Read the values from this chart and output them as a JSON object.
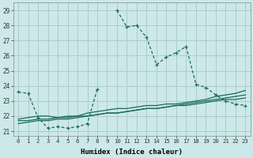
{
  "title": "",
  "xlabel": "Humidex (Indice chaleur)",
  "ylabel": "",
  "background_color": "#cce8e8",
  "grid_color": "#aacccc",
  "line_color": "#1a6b5a",
  "xlim": [
    -0.5,
    23.5
  ],
  "ylim": [
    20.7,
    29.5
  ],
  "yticks": [
    21,
    22,
    23,
    24,
    25,
    26,
    27,
    28,
    29
  ],
  "xticks": [
    0,
    1,
    2,
    3,
    4,
    5,
    6,
    7,
    8,
    9,
    10,
    11,
    12,
    13,
    14,
    15,
    16,
    17,
    18,
    19,
    20,
    21,
    22,
    23
  ],
  "line1_x": [
    0,
    1,
    2,
    3,
    4,
    5,
    6,
    7,
    8,
    9,
    10,
    11,
    12,
    13,
    14,
    15,
    16,
    17,
    18,
    19,
    20,
    21,
    22,
    23
  ],
  "line1_y": [
    23.6,
    23.5,
    21.9,
    21.2,
    21.3,
    21.2,
    21.3,
    21.5,
    23.8,
    null,
    29.0,
    27.9,
    28.0,
    27.2,
    25.4,
    25.9,
    26.2,
    26.6,
    24.1,
    23.9,
    23.4,
    23.0,
    22.8,
    22.7
  ],
  "line2_x": [
    0,
    1,
    2,
    3,
    4,
    5,
    6,
    7,
    8,
    9,
    10,
    11,
    12,
    13,
    14,
    15,
    16,
    17,
    18,
    19,
    20,
    21,
    22,
    23
  ],
  "line2_y": [
    21.8,
    21.9,
    22.0,
    22.0,
    21.9,
    22.0,
    22.0,
    22.2,
    22.3,
    22.4,
    22.5,
    22.5,
    22.6,
    22.7,
    22.7,
    22.8,
    22.8,
    22.9,
    23.0,
    23.1,
    23.3,
    23.4,
    23.5,
    23.7
  ],
  "line3_x": [
    0,
    1,
    2,
    3,
    4,
    5,
    6,
    7,
    8,
    9,
    10,
    11,
    12,
    13,
    14,
    15,
    16,
    17,
    18,
    19,
    20,
    21,
    22,
    23
  ],
  "line3_y": [
    21.5,
    21.6,
    21.7,
    21.7,
    21.8,
    21.8,
    21.9,
    22.0,
    22.1,
    22.2,
    22.2,
    22.3,
    22.4,
    22.5,
    22.5,
    22.6,
    22.7,
    22.8,
    22.9,
    23.0,
    23.1,
    23.2,
    23.3,
    23.4
  ],
  "line4_x": [
    0,
    1,
    2,
    3,
    4,
    5,
    6,
    7,
    8,
    9,
    10,
    11,
    12,
    13,
    14,
    15,
    16,
    17,
    18,
    19,
    20,
    21,
    22,
    23
  ],
  "line4_y": [
    21.7,
    21.7,
    21.8,
    21.8,
    21.9,
    21.9,
    22.0,
    22.0,
    22.1,
    22.2,
    22.2,
    22.3,
    22.4,
    22.5,
    22.5,
    22.6,
    22.7,
    22.7,
    22.8,
    22.9,
    23.0,
    23.1,
    23.1,
    23.2
  ]
}
